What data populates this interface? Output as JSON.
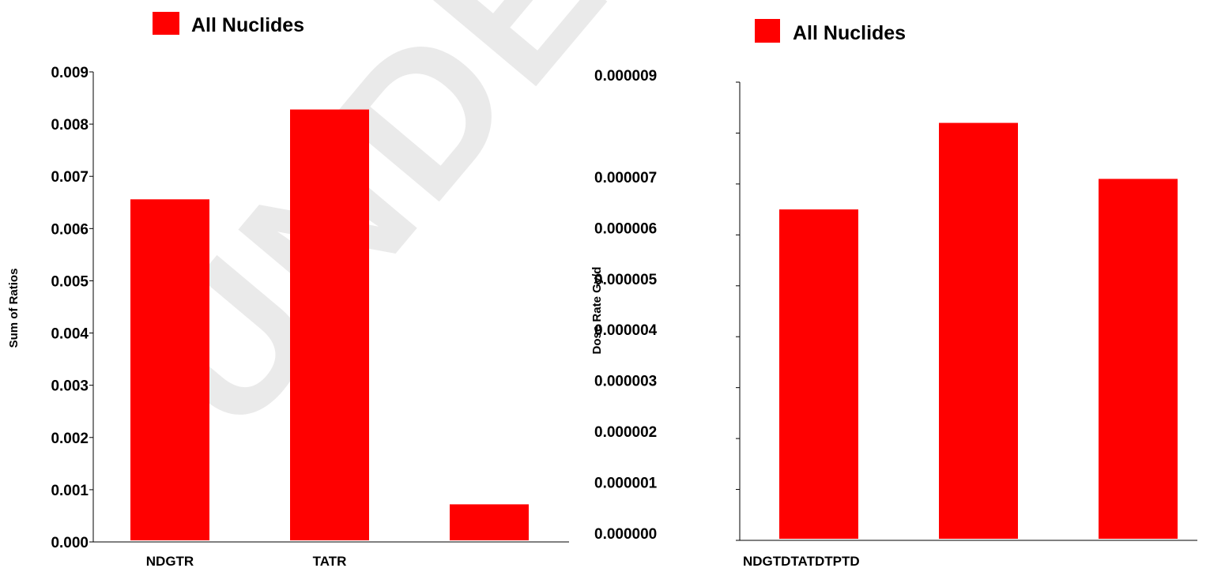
{
  "watermark": "UNDER PEER REVIEW",
  "chart_data": [
    {
      "type": "bar",
      "legend": {
        "label": "All Nuclides",
        "color": "#ff0000",
        "placement": "top"
      },
      "ylabel": "Sum of Ratios",
      "xlabel": "",
      "categories": [
        "NDGTR",
        "TATR",
        ""
      ],
      "category_labels": [
        "NDGTR",
        "TATR"
      ],
      "values": [
        0.00656,
        0.00828,
        0.00072
      ],
      "ylim": [
        0,
        0.009
      ],
      "yticks": [
        "0.000",
        "0.001",
        "0.002",
        "0.003",
        "0.004",
        "0.005",
        "0.006",
        "0.007",
        "0.008",
        "0.009"
      ],
      "grid": false
    },
    {
      "type": "bar",
      "legend": {
        "label": "All Nuclides",
        "color": "#ff0000",
        "placement": "top"
      },
      "ylabel": "Dose Rate Gy/d",
      "xlabel": "",
      "categories": [
        "NDGTD",
        "TATD",
        "TPTD"
      ],
      "category_label_text": "NDGTDTATDTPTD",
      "values": [
        6.5e-06,
        8.2e-06,
        7.1e-06
      ],
      "ylim": [
        0,
        9e-06
      ],
      "yticks": [
        "0.000000",
        "0.000001",
        "0.000002",
        "0.000003",
        "0.000004",
        "0.000005",
        "0.000006",
        "0.000007",
        "",
        "0.000009"
      ],
      "grid": false
    }
  ]
}
